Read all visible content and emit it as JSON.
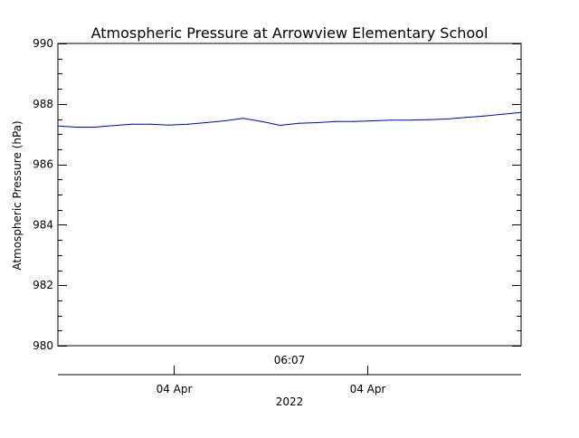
{
  "chart_data": {
    "type": "line",
    "title": "Atmospheric Pressure at Arrowview Elementary School",
    "ylabel": "Atmospheric Pressure (hPa)",
    "xlabel": "2022",
    "x_time_label": "06:07",
    "ylim": [
      980,
      990
    ],
    "y_major_ticks": [
      980,
      982,
      984,
      986,
      988,
      990
    ],
    "y_tick_labels": [
      "980",
      "982",
      "984",
      "986",
      "988",
      "990"
    ],
    "y_minor_step": 0.5,
    "x_tick_labels": [
      "04 Apr",
      "04 Apr"
    ],
    "x_tick_positions": [
      0.25,
      0.667
    ],
    "grid": false,
    "series": [
      {
        "color": "#0000cc",
        "x": [
          0,
          0.04,
          0.08,
          0.12,
          0.16,
          0.2,
          0.24,
          0.28,
          0.32,
          0.36,
          0.4,
          0.44,
          0.48,
          0.52,
          0.56,
          0.6,
          0.64,
          0.68,
          0.72,
          0.76,
          0.8,
          0.84,
          0.88,
          0.92,
          0.96,
          1.0
        ],
        "values": [
          987.27,
          987.23,
          987.23,
          987.28,
          987.33,
          987.33,
          987.3,
          987.33,
          987.38,
          987.44,
          987.52,
          987.42,
          987.29,
          987.36,
          987.38,
          987.42,
          987.42,
          987.44,
          987.46,
          987.46,
          987.48,
          987.5,
          987.55,
          987.6,
          987.66,
          987.72
        ]
      }
    ]
  }
}
